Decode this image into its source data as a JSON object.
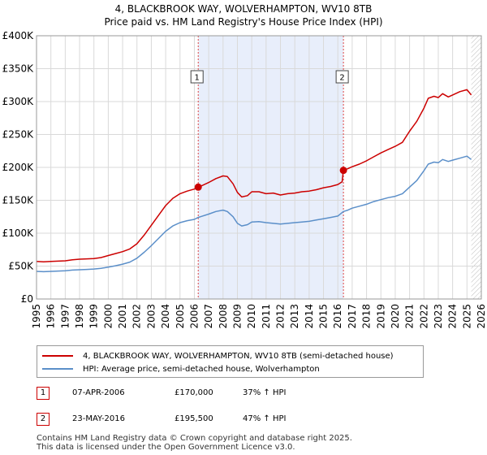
{
  "header": {
    "title": "4, BLACKBROOK WAY, WOLVERHAMPTON, WV10 8TB",
    "subtitle": "Price paid vs. HM Land Registry's House Price Index (HPI)"
  },
  "chart_data": {
    "type": "line",
    "title": "4, BLACKBROOK WAY, WOLVERHAMPTON, WV10 8TB",
    "subtitle": "Price paid vs. HM Land Registry's House Price Index (HPI)",
    "xlabel": "",
    "ylabel": "",
    "xlim": [
      1995,
      2026
    ],
    "ylim": [
      0,
      400000
    ],
    "x_ticks": [
      1995,
      1996,
      1997,
      1998,
      1999,
      2000,
      2001,
      2002,
      2003,
      2004,
      2005,
      2006,
      2007,
      2008,
      2009,
      2010,
      2011,
      2012,
      2013,
      2014,
      2015,
      2016,
      2017,
      2018,
      2019,
      2020,
      2021,
      2022,
      2023,
      2024,
      2025,
      2026
    ],
    "y_ticks": [
      {
        "value": 0,
        "label": "£0"
      },
      {
        "value": 50000,
        "label": "£50K"
      },
      {
        "value": 100000,
        "label": "£100K"
      },
      {
        "value": 150000,
        "label": "£150K"
      },
      {
        "value": 200000,
        "label": "£200K"
      },
      {
        "value": 250000,
        "label": "£250K"
      },
      {
        "value": 300000,
        "label": "£300K"
      },
      {
        "value": 350000,
        "label": "£350K"
      },
      {
        "value": 400000,
        "label": "£400K"
      }
    ],
    "grid": true,
    "ownership_shading": {
      "from": 2006.27,
      "to": 2016.39
    },
    "future_hatch_from": 2025.3,
    "series": [
      {
        "name": "4, BLACKBROOK WAY, WOLVERHAMPTON, WV10 8TB (semi-detached house)",
        "color": "#cc0000",
        "points": [
          [
            1995.0,
            57000
          ],
          [
            1995.5,
            56500
          ],
          [
            1996.0,
            57000
          ],
          [
            1996.5,
            57500
          ],
          [
            1997.0,
            58000
          ],
          [
            1997.5,
            59500
          ],
          [
            1998.0,
            60500
          ],
          [
            1998.5,
            61000
          ],
          [
            1999.0,
            61500
          ],
          [
            1999.5,
            63000
          ],
          [
            2000.0,
            66000
          ],
          [
            2000.5,
            69000
          ],
          [
            2001.0,
            72000
          ],
          [
            2001.5,
            76000
          ],
          [
            2002.0,
            84000
          ],
          [
            2002.5,
            97000
          ],
          [
            2003.0,
            112000
          ],
          [
            2003.5,
            127000
          ],
          [
            2004.0,
            142000
          ],
          [
            2004.5,
            153000
          ],
          [
            2005.0,
            160000
          ],
          [
            2005.5,
            164000
          ],
          [
            2006.0,
            167000
          ],
          [
            2006.27,
            170000
          ],
          [
            2006.5,
            172000
          ],
          [
            2007.0,
            177000
          ],
          [
            2007.5,
            183000
          ],
          [
            2008.0,
            187000
          ],
          [
            2008.3,
            186000
          ],
          [
            2008.7,
            175000
          ],
          [
            2009.0,
            162000
          ],
          [
            2009.3,
            155000
          ],
          [
            2009.7,
            157000
          ],
          [
            2010.0,
            163000
          ],
          [
            2010.5,
            163000
          ],
          [
            2011.0,
            160000
          ],
          [
            2011.5,
            161000
          ],
          [
            2012.0,
            158000
          ],
          [
            2012.5,
            160000
          ],
          [
            2013.0,
            161000
          ],
          [
            2013.5,
            163000
          ],
          [
            2014.0,
            164000
          ],
          [
            2014.5,
            166000
          ],
          [
            2015.0,
            169000
          ],
          [
            2015.5,
            171000
          ],
          [
            2016.0,
            174000
          ],
          [
            2016.3,
            178000
          ],
          [
            2016.39,
            195500
          ],
          [
            2016.7,
            198000
          ],
          [
            2017.0,
            201000
          ],
          [
            2017.5,
            205000
          ],
          [
            2018.0,
            210000
          ],
          [
            2018.5,
            216000
          ],
          [
            2019.0,
            222000
          ],
          [
            2019.5,
            227000
          ],
          [
            2020.0,
            232000
          ],
          [
            2020.5,
            238000
          ],
          [
            2021.0,
            255000
          ],
          [
            2021.5,
            270000
          ],
          [
            2022.0,
            290000
          ],
          [
            2022.3,
            305000
          ],
          [
            2022.7,
            308000
          ],
          [
            2023.0,
            306000
          ],
          [
            2023.3,
            312000
          ],
          [
            2023.7,
            307000
          ],
          [
            2024.0,
            310000
          ],
          [
            2024.5,
            315000
          ],
          [
            2025.0,
            318000
          ],
          [
            2025.3,
            310000
          ]
        ]
      },
      {
        "name": "HPI: Average price, semi-detached house, Wolverhampton",
        "color": "#5b8fc9",
        "points": [
          [
            1995.0,
            42000
          ],
          [
            1995.5,
            41500
          ],
          [
            1996.0,
            42000
          ],
          [
            1996.5,
            42500
          ],
          [
            1997.0,
            43000
          ],
          [
            1997.5,
            44000
          ],
          [
            1998.0,
            44500
          ],
          [
            1998.5,
            45000
          ],
          [
            1999.0,
            45500
          ],
          [
            1999.5,
            46500
          ],
          [
            2000.0,
            48500
          ],
          [
            2000.5,
            50500
          ],
          [
            2001.0,
            53000
          ],
          [
            2001.5,
            56000
          ],
          [
            2002.0,
            62000
          ],
          [
            2002.5,
            71000
          ],
          [
            2003.0,
            81000
          ],
          [
            2003.5,
            92000
          ],
          [
            2004.0,
            103000
          ],
          [
            2004.5,
            111000
          ],
          [
            2005.0,
            116000
          ],
          [
            2005.5,
            119000
          ],
          [
            2006.0,
            121000
          ],
          [
            2006.27,
            124000
          ],
          [
            2006.5,
            125500
          ],
          [
            2007.0,
            129000
          ],
          [
            2007.5,
            133000
          ],
          [
            2008.0,
            135000
          ],
          [
            2008.3,
            133000
          ],
          [
            2008.7,
            125000
          ],
          [
            2009.0,
            115000
          ],
          [
            2009.3,
            111000
          ],
          [
            2009.7,
            113000
          ],
          [
            2010.0,
            117000
          ],
          [
            2010.5,
            117500
          ],
          [
            2011.0,
            116000
          ],
          [
            2011.5,
            115000
          ],
          [
            2012.0,
            114000
          ],
          [
            2012.5,
            115000
          ],
          [
            2013.0,
            116000
          ],
          [
            2013.5,
            117000
          ],
          [
            2014.0,
            118000
          ],
          [
            2014.5,
            120000
          ],
          [
            2015.0,
            122000
          ],
          [
            2015.5,
            124000
          ],
          [
            2016.0,
            126000
          ],
          [
            2016.39,
            133000
          ],
          [
            2016.7,
            135000
          ],
          [
            2017.0,
            138000
          ],
          [
            2017.5,
            141000
          ],
          [
            2018.0,
            144000
          ],
          [
            2018.5,
            148000
          ],
          [
            2019.0,
            151000
          ],
          [
            2019.5,
            154000
          ],
          [
            2020.0,
            156000
          ],
          [
            2020.5,
            160000
          ],
          [
            2021.0,
            170000
          ],
          [
            2021.5,
            180000
          ],
          [
            2022.0,
            195000
          ],
          [
            2022.3,
            205000
          ],
          [
            2022.7,
            208000
          ],
          [
            2023.0,
            207000
          ],
          [
            2023.3,
            212000
          ],
          [
            2023.7,
            209000
          ],
          [
            2024.0,
            211000
          ],
          [
            2024.5,
            214000
          ],
          [
            2025.0,
            217000
          ],
          [
            2025.3,
            212000
          ]
        ]
      }
    ],
    "markers": [
      {
        "label": "1",
        "x": 2006.27,
        "y": 170000
      },
      {
        "label": "2",
        "x": 2016.39,
        "y": 195500
      }
    ]
  },
  "legend": [
    {
      "label": "4, BLACKBROOK WAY, WOLVERHAMPTON, WV10 8TB (semi-detached house)",
      "color": "#cc0000"
    },
    {
      "label": "HPI: Average price, semi-detached house, Wolverhampton",
      "color": "#5b8fc9"
    }
  ],
  "transactions": [
    {
      "num": "1",
      "date": "07-APR-2006",
      "price": "£170,000",
      "hpi": "37% ↑ HPI"
    },
    {
      "num": "2",
      "date": "23-MAY-2016",
      "price": "£195,500",
      "hpi": "47% ↑ HPI"
    }
  ],
  "footer": {
    "line1": "Contains HM Land Registry data © Crown copyright and database right 2025.",
    "line2": "This data is licensed under the Open Government Licence v3.0."
  }
}
